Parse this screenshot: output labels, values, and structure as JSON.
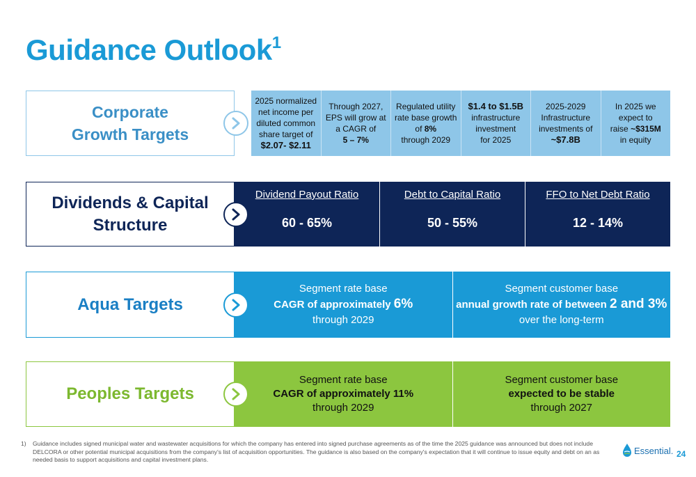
{
  "title": {
    "text": "Guidance Outlook",
    "superscript": "1"
  },
  "colors": {
    "title": "#1a9ad6",
    "corporate": "#8ec6e8",
    "dividends": "#0e2557",
    "aqua": "#1a9ad6",
    "peoples": "#8cc63f"
  },
  "rows": {
    "corporate": {
      "label_line1": "Corporate",
      "label_line2": "Growth Targets",
      "cells": [
        {
          "l1": "2025 normalized",
          "l2": "net income per",
          "l3": "diluted common",
          "l4": "share target of",
          "l5": "$2.07- $2.11"
        },
        {
          "l1": "Through 2027,",
          "l2": "EPS will grow at",
          "l3": "a CAGR of",
          "l4": "5 – 7%"
        },
        {
          "l1": "Regulated utility",
          "l2": "rate base growth",
          "l3a": "of ",
          "l3b": "8%",
          "l4": "through 2029"
        },
        {
          "l1": "$1.4 to $1.5B",
          "l2": "infrastructure",
          "l3": "investment",
          "l4": "for 2025"
        },
        {
          "l1": "2025-2029",
          "l2": "Infrastructure",
          "l3": "investments of",
          "l4": "~$7.8B"
        },
        {
          "l1": "In 2025 we",
          "l2": "expect to",
          "l3a": "raise ",
          "l3b": "~$315M",
          "l4": "in equity"
        }
      ]
    },
    "dividends": {
      "label_line1": "Dividends & Capital",
      "label_line2": "Structure",
      "cells": [
        {
          "heading": "Dividend Payout Ratio",
          "value": "60 - 65%"
        },
        {
          "heading": "Debt to Capital Ratio",
          "value": "50 - 55%"
        },
        {
          "heading": "FFO to Net Debt Ratio",
          "value": "12 - 14%"
        }
      ]
    },
    "aqua": {
      "label": "Aqua Targets",
      "cells": [
        {
          "l1": "Segment rate base",
          "l2a": "CAGR of approximately ",
          "l2b": "6%",
          "l3": "through 2029"
        },
        {
          "l1": "Segment customer base",
          "l2a": "annual growth rate of between ",
          "l2b": "2 and 3%",
          "l3": "over the long-term"
        }
      ]
    },
    "peoples": {
      "label": "Peoples Targets",
      "cells": [
        {
          "l1": "Segment rate base",
          "l2": "CAGR of approximately 11%",
          "l3": "through 2029"
        },
        {
          "l1": "Segment customer base",
          "l2": "expected to be stable",
          "l3": "through 2027"
        }
      ]
    }
  },
  "footnote": {
    "number": "1)",
    "text": "Guidance includes signed municipal water and wastewater acquisitions for which the company has entered into signed purchase agreements as of the time the 2025 guidance was announced but does not include DELCORA or other potential municipal acquisitions from the company's list of acquisition opportunities. The guidance is also based on the company's expectation that it will continue to issue equity and debt on an as needed basis to support acquisitions and capital investment plans."
  },
  "logo": {
    "text": "Essential."
  },
  "page_number": "24"
}
